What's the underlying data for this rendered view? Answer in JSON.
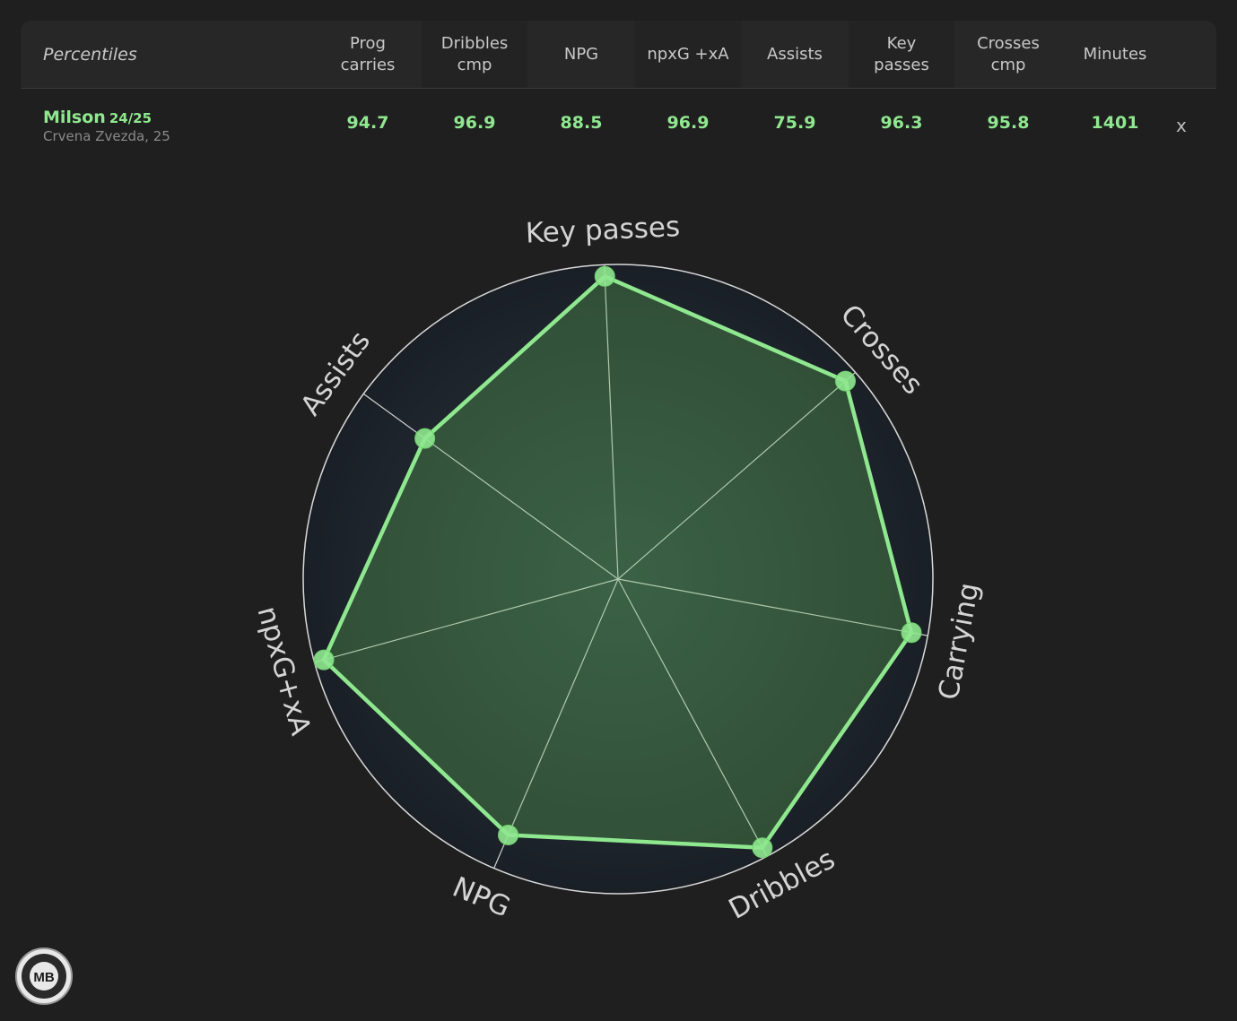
{
  "table": {
    "title": "Percentiles",
    "columns": [
      "Prog\ncarries",
      "Dribbles\ncmp",
      "NPG",
      "npxG +xA",
      "Assists",
      "Key\npasses",
      "Crosses\ncmp",
      "Minutes"
    ],
    "row": {
      "name": "Milson",
      "season": "24/25",
      "club": "Crvena Zvezda, 25",
      "values": [
        "94.7",
        "96.9",
        "88.5",
        "96.9",
        "75.9",
        "96.3",
        "95.8",
        "1401"
      ],
      "remove_label": "x"
    }
  },
  "colors": {
    "accent": "#8fe88f",
    "background": "#1f1f1f",
    "radar_background": "#1a1f26"
  },
  "logo_text": "MB",
  "chart_data": {
    "type": "radar",
    "axes": [
      "Key passes",
      "Crosses",
      "Carrying",
      "Dribbles",
      "NPG",
      "npxG+xA",
      "Assists"
    ],
    "series": [
      {
        "values": [
          96.3,
          95.8,
          94.7,
          96.9,
          88.5,
          96.9,
          75.9
        ]
      }
    ],
    "range": [
      0,
      100
    ],
    "grid": false
  }
}
